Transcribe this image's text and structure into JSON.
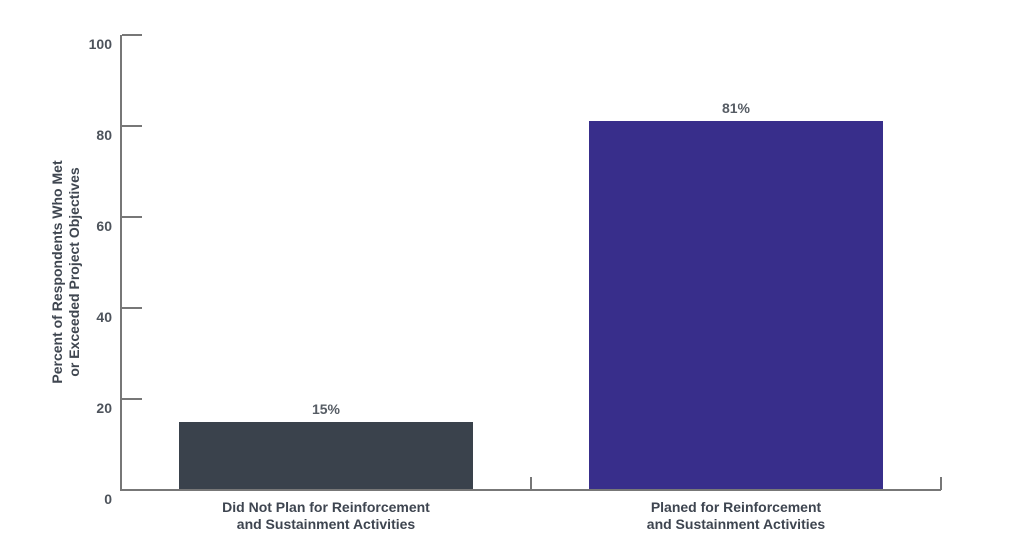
{
  "chart_data": {
    "type": "bar",
    "title": "",
    "categories": [
      "Did Not Plan for Reinforcement and Sustainment Activities",
      "Planed for Reinforcement and Sustainment Activities"
    ],
    "category_lines": [
      [
        "Did Not Plan for Reinforcement",
        "and Sustainment Activities"
      ],
      [
        "Planed for Reinforcement",
        "and Sustainment Activities"
      ]
    ],
    "values": [
      15,
      81
    ],
    "value_labels": [
      "15%",
      "81%"
    ],
    "bar_colors": [
      "#3A424C",
      "#382E8B"
    ],
    "ylabel": "Percent of Respondents Who Met or Exceeded Project Objectives",
    "ylabel_lines": [
      "Percent of Respondents Who Met",
      "or Exceeded Project Objectives"
    ],
    "xlabel": "",
    "ylim": [
      0,
      100
    ],
    "yticks": [
      0,
      20,
      40,
      60,
      80,
      100
    ],
    "grid": false,
    "legend": false,
    "colors": {
      "axis": "#777777",
      "tick_label": "#4D535B",
      "value_label": "#565C64",
      "category_label": "#3E4550",
      "background": "#FFFFFF"
    }
  }
}
